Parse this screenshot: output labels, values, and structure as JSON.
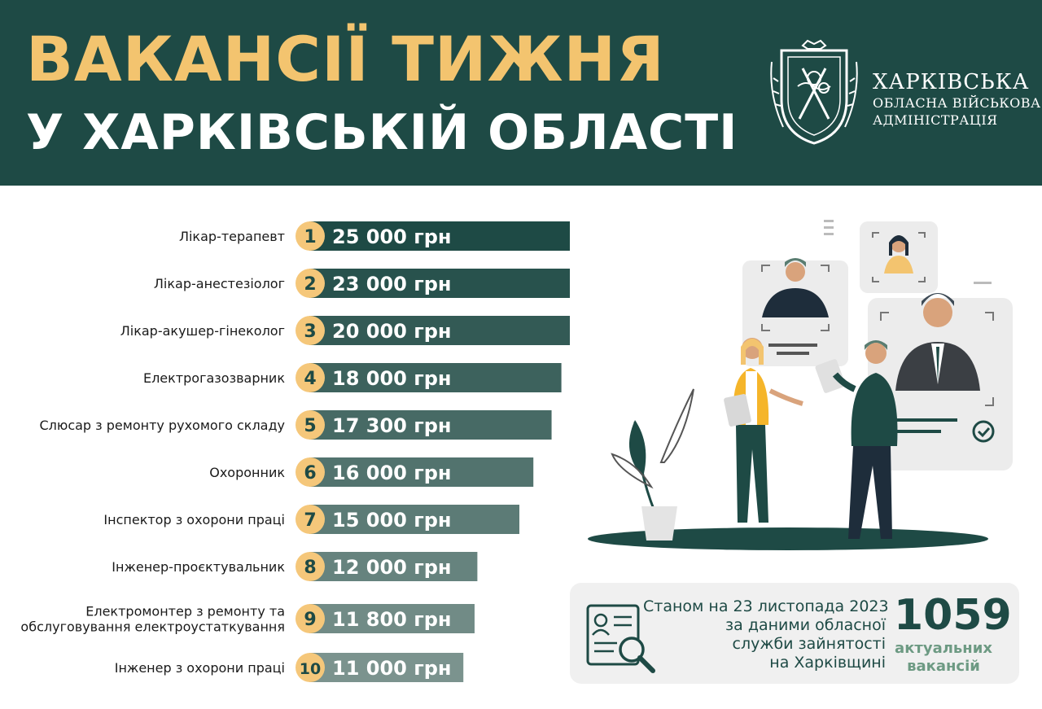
{
  "header": {
    "title_line1": "ВАКАНСІЇ ТИЖНЯ",
    "title_line2": "У ХАРКІВСЬКІЙ ОБЛАСТІ",
    "org_line1": "ХАРКІВСЬКА",
    "org_line2": "ОБЛАСНА ВІЙСЬКОВА",
    "org_line3": "АДМІНІСТРАЦІЯ",
    "logo_icon": "kharkiv-oblast-coat-of-arms-icon"
  },
  "colors": {
    "header_bg": "#1e4a45",
    "title_accent": "#f3c46f",
    "badge": "#f5c77a",
    "bar_dark": "#1e4a45",
    "bar_light": "#7b938e"
  },
  "chart_data": {
    "type": "bar",
    "orientation": "horizontal",
    "categories": [
      "Лікар-терапевт",
      "Лікар-анестезіолог",
      "Лікар-акушер-гінеколог",
      "Електрогазозварник",
      "Слюсар з ремонту рухомого складу",
      "Охоронник",
      "Інспектор з охорони праці",
      "Інженер-проєктувальник",
      "Електромонтер з ремонту та обслуговування електроустаткування",
      "Інженер з охорони праці"
    ],
    "category_lines": [
      [
        "Лікар-терапевт"
      ],
      [
        "Лікар-анестезіолог"
      ],
      [
        "Лікар-акушер-гінеколог"
      ],
      [
        "Електрогазозварник"
      ],
      [
        "Слюсар з ремонту рухомого складу"
      ],
      [
        "Охоронник"
      ],
      [
        "Інспектор з охорони праці"
      ],
      [
        "Інженер-проєктувальник"
      ],
      [
        "Електромонтер з ремонту та",
        "обслуговування електроустаткування"
      ],
      [
        "Інженер з охорони праці"
      ]
    ],
    "ranks": [
      "1",
      "2",
      "3",
      "4",
      "5",
      "6",
      "7",
      "8",
      "9",
      "10"
    ],
    "values": [
      25000,
      23000,
      20000,
      18000,
      17300,
      16000,
      15000,
      12000,
      11800,
      11000
    ],
    "value_labels": [
      "25 000 грн",
      "23 000 грн",
      "20 000 грн",
      "18 000 грн",
      "17 300 грн",
      "16 000 грн",
      "15 000 грн",
      "12 000 грн",
      "11 800 грн",
      "11 000 грн"
    ],
    "unit": "грн"
  },
  "info": {
    "line1": "Станом на 23 листопада 2023",
    "line2": "за даними обласної",
    "line3": "служби зайнятості",
    "line4": "на Харківщині",
    "count": "1059",
    "count_label1": "актуальних",
    "count_label2": "вакансій",
    "icon": "document-search-icon"
  },
  "illustration": {
    "icon": "recruitment-illustration-icon"
  }
}
